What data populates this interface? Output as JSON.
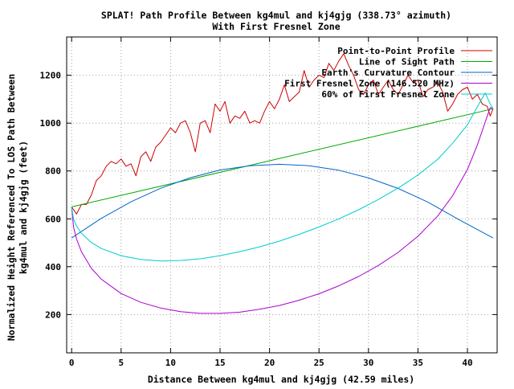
{
  "chart_data": {
    "type": "line",
    "title_line1": "SPLAT! Path Profile Between kg4mul and kj4gjg (338.73° azimuth)",
    "title_line2": "With First Fresnel Zone",
    "xlabel": "Distance Between kg4mul and kj4gjg (42.59 miles)",
    "ylabel_line1": "Normalized Height Referenced To LOS Path Between",
    "ylabel_line2": "kg4mul and kj4gjg (feet)",
    "xlim": [
      -0.5,
      43
    ],
    "ylim": [
      40,
      1360
    ],
    "x_ticks": [
      "0",
      "5",
      "10",
      "15",
      "20",
      "25",
      "30",
      "35",
      "40"
    ],
    "x_tick_values": [
      0,
      5,
      10,
      15,
      20,
      25,
      30,
      35,
      40
    ],
    "y_ticks": [
      "200",
      "400",
      "600",
      "800",
      "1000",
      "1200"
    ],
    "y_tick_values": [
      200,
      400,
      600,
      800,
      1000,
      1200
    ],
    "grid": true,
    "legend_position": "top-right",
    "series": [
      {
        "name": "Point-to-Point Profile",
        "color": "#cc0000",
        "x": [
          0,
          0.5,
          1,
          1.5,
          2,
          2.5,
          3,
          3.5,
          4,
          4.5,
          5,
          5.5,
          6,
          6.5,
          7,
          7.5,
          8,
          8.5,
          9,
          9.5,
          10,
          10.5,
          11,
          11.5,
          12,
          12.5,
          13,
          13.5,
          14,
          14.5,
          15,
          15.5,
          16,
          16.5,
          17,
          17.5,
          18,
          18.5,
          19,
          19.5,
          20,
          20.5,
          21,
          21.5,
          22,
          22.5,
          23,
          23.5,
          24,
          24.5,
          25,
          25.5,
          26,
          26.5,
          27,
          27.5,
          28,
          28.5,
          29,
          29.5,
          30,
          30.5,
          31,
          31.5,
          32,
          32.5,
          33,
          33.5,
          34,
          34.5,
          35,
          35.5,
          36,
          36.5,
          37,
          37.5,
          38,
          38.5,
          39,
          39.5,
          40,
          40.5,
          41,
          41.5,
          42,
          42.3,
          42.59
        ],
        "values": [
          650,
          620,
          660,
          660,
          700,
          760,
          780,
          820,
          840,
          830,
          850,
          820,
          830,
          780,
          860,
          880,
          840,
          900,
          920,
          950,
          980,
          960,
          1000,
          1010,
          960,
          880,
          1000,
          1010,
          960,
          1080,
          1050,
          1090,
          1000,
          1030,
          1020,
          1050,
          1000,
          1010,
          1000,
          1050,
          1090,
          1060,
          1100,
          1160,
          1090,
          1110,
          1130,
          1220,
          1150,
          1180,
          1200,
          1190,
          1250,
          1220,
          1260,
          1290,
          1240,
          1200,
          1140,
          1120,
          1160,
          1180,
          1120,
          1150,
          1180,
          1140,
          1120,
          1160,
          1200,
          1170,
          1180,
          1110,
          1140,
          1150,
          1170,
          1130,
          1050,
          1080,
          1120,
          1140,
          1150,
          1100,
          1120,
          1080,
          1070,
          1030,
          1060
        ]
      },
      {
        "name": "Line of Sight Path",
        "color": "#00aa00",
        "x": [
          0,
          42.59
        ],
        "values": [
          650,
          1060
        ]
      },
      {
        "name": "Earth's Curvature Contour",
        "color": "#0066cc",
        "x": [
          0,
          3,
          6,
          9,
          12,
          15,
          18,
          21,
          24,
          27,
          30,
          33,
          36,
          39,
          42.59
        ],
        "values": [
          520,
          602,
          671,
          728,
          772,
          804,
          822,
          828,
          822,
          803,
          771,
          727,
          670,
          600,
          520
        ]
      },
      {
        "name": "First Fresnel Zone (146.520 MHz)",
        "color": "#aa00cc",
        "x": [
          0,
          0.2,
          0.5,
          1,
          2,
          3,
          5,
          7,
          9,
          11,
          13,
          15,
          17,
          19,
          21,
          23,
          25,
          27,
          29,
          31,
          33,
          35,
          37,
          38.5,
          40,
          41,
          41.8,
          42.3,
          42.59
        ],
        "values": [
          650,
          565,
          516,
          462,
          393,
          348,
          288,
          251,
          227,
          212,
          205,
          205,
          210,
          222,
          238,
          260,
          287,
          320,
          359,
          405,
          460,
          527,
          612,
          697,
          806,
          909,
          1005,
          1065,
          1060
        ]
      },
      {
        "name": "60% of First Fresnel Zone",
        "color": "#00cccc",
        "x": [
          0,
          0.2,
          0.5,
          1,
          2,
          3,
          5,
          7,
          9,
          11,
          13,
          15,
          17,
          19,
          21,
          23,
          25,
          27,
          29,
          31,
          33,
          35,
          37,
          38.5,
          40,
          41,
          41.8,
          42.3,
          42.59
        ],
        "values": [
          650,
          599,
          570,
          539,
          501,
          476,
          446,
          430,
          424,
          426,
          433,
          446,
          463,
          483,
          507,
          535,
          566,
          600,
          638,
          681,
          729,
          783,
          849,
          916,
          993,
          1068,
          1126,
          1080,
          1060
        ]
      }
    ]
  }
}
